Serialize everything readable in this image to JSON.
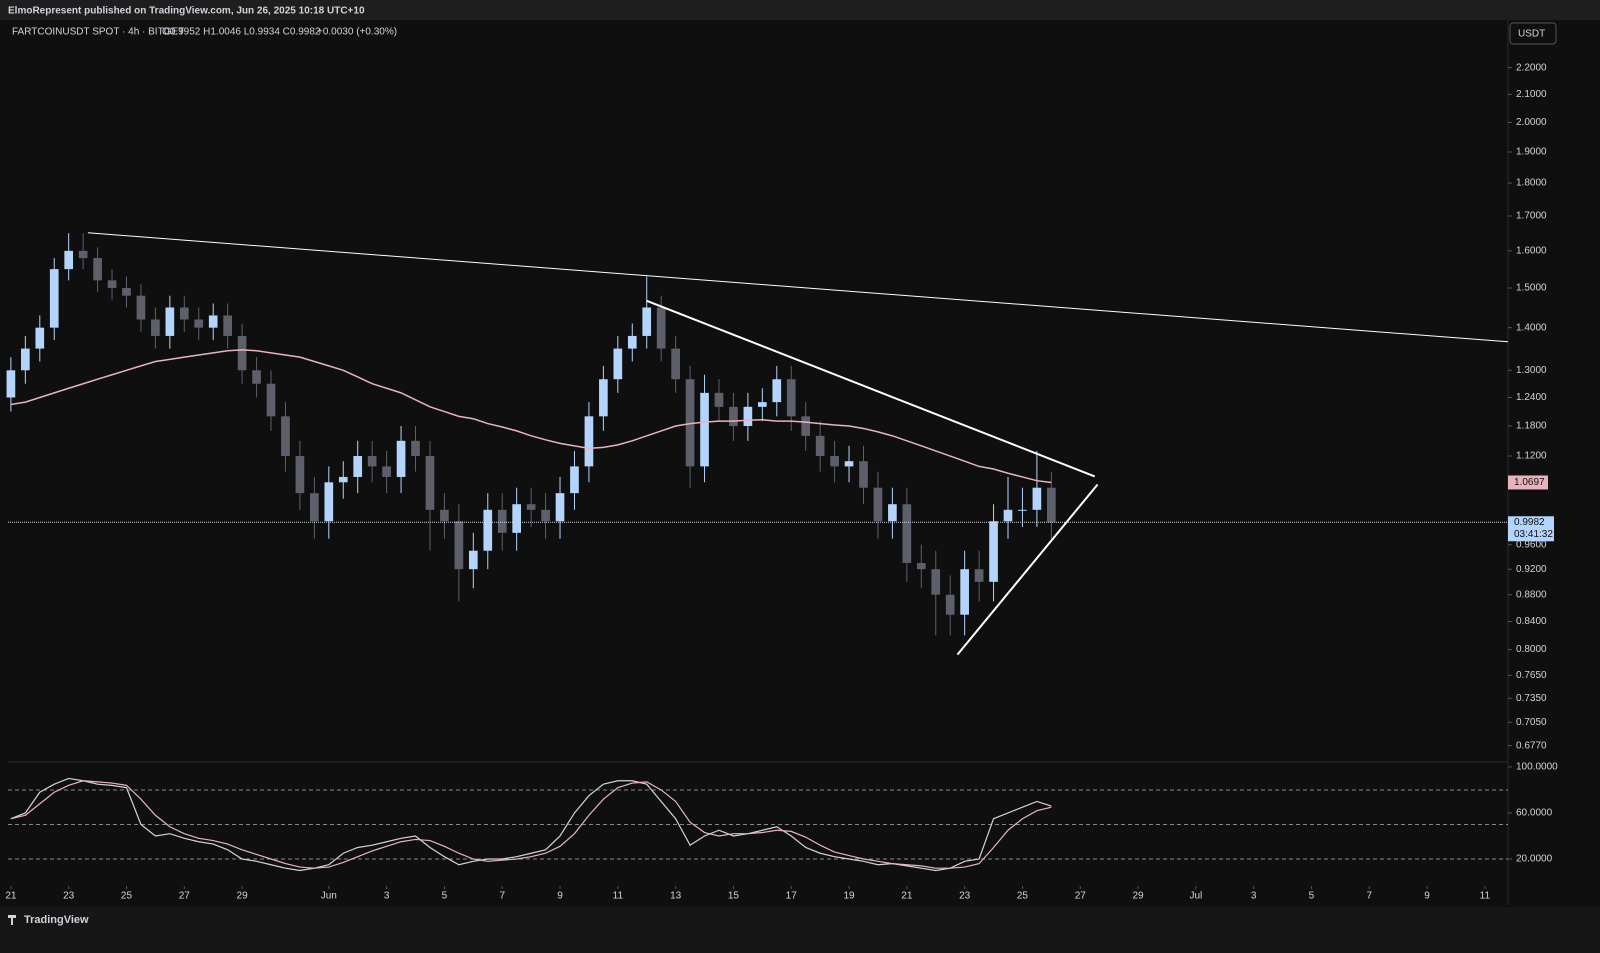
{
  "header": {
    "publisher": "ElmoRepresent published on TradingView.com, Jun 26, 2025 10:18 UTC+10",
    "symbol": "FARTCOINUSDT SPOT · 4h · BITGET",
    "ohlc": "O0.9952 H1.0046 L0.9934 C0.9982",
    "change": "+0.0030 (+0.30%)",
    "currency": "USDT",
    "logo": "TradingView"
  },
  "chart_data": [
    {
      "type": "candlestick",
      "open": [
        1.24,
        1.3,
        1.35,
        1.4,
        1.55,
        1.6,
        1.58,
        1.52,
        1.5,
        1.48,
        1.42,
        1.38,
        1.45,
        1.42,
        1.4,
        1.43,
        1.38,
        1.3,
        1.27,
        1.2,
        1.12,
        1.05,
        1.0,
        1.07,
        1.08,
        1.12,
        1.1,
        1.08,
        1.15,
        1.12,
        1.02,
        1.0,
        0.92,
        0.95,
        1.02,
        0.98,
        1.03,
        1.02,
        1.0,
        1.05,
        1.1,
        1.2,
        1.28,
        1.35,
        1.38,
        1.45,
        1.35,
        1.28,
        1.1,
        1.25,
        1.22,
        1.18,
        1.22,
        1.23,
        1.28,
        1.2,
        1.16,
        1.12,
        1.1,
        1.11,
        1.06,
        1.0,
        1.03,
        0.93,
        0.92,
        0.88,
        0.85,
        0.92,
        0.9,
        1.0,
        1.02,
        1.02,
        1.06
      ],
      "high": [
        1.33,
        1.38,
        1.43,
        1.58,
        1.65,
        1.65,
        1.61,
        1.55,
        1.53,
        1.51,
        1.45,
        1.48,
        1.48,
        1.45,
        1.46,
        1.46,
        1.41,
        1.33,
        1.3,
        1.23,
        1.15,
        1.08,
        1.1,
        1.11,
        1.15,
        1.15,
        1.13,
        1.18,
        1.18,
        1.15,
        1.05,
        1.03,
        0.98,
        1.05,
        1.05,
        1.06,
        1.06,
        1.05,
        1.08,
        1.13,
        1.23,
        1.31,
        1.38,
        1.41,
        1.53,
        1.48,
        1.38,
        1.31,
        1.29,
        1.28,
        1.25,
        1.25,
        1.26,
        1.31,
        1.31,
        1.23,
        1.19,
        1.15,
        1.14,
        1.14,
        1.09,
        1.06,
        1.06,
        0.96,
        0.95,
        0.91,
        0.95,
        0.95,
        1.03,
        1.08,
        1.06,
        1.13,
        1.09
      ],
      "low": [
        1.21,
        1.27,
        1.32,
        1.37,
        1.52,
        1.55,
        1.49,
        1.47,
        1.45,
        1.39,
        1.35,
        1.35,
        1.39,
        1.37,
        1.37,
        1.35,
        1.27,
        1.24,
        1.17,
        1.09,
        1.02,
        0.97,
        0.97,
        1.04,
        1.05,
        1.07,
        1.05,
        1.05,
        1.09,
        0.95,
        0.97,
        0.87,
        0.89,
        0.92,
        0.95,
        0.95,
        0.99,
        0.97,
        0.97,
        1.02,
        1.07,
        1.17,
        1.25,
        1.32,
        1.35,
        1.32,
        1.25,
        1.06,
        1.07,
        1.19,
        1.15,
        1.15,
        1.19,
        1.2,
        1.17,
        1.13,
        1.09,
        1.07,
        1.07,
        1.03,
        0.97,
        0.97,
        0.9,
        0.89,
        0.82,
        0.82,
        0.82,
        0.87,
        0.87,
        0.97,
        0.99,
        0.99,
        0.97
      ],
      "close": [
        1.3,
        1.35,
        1.4,
        1.55,
        1.6,
        1.58,
        1.52,
        1.5,
        1.48,
        1.42,
        1.38,
        1.45,
        1.42,
        1.4,
        1.43,
        1.38,
        1.3,
        1.27,
        1.2,
        1.12,
        1.05,
        1.0,
        1.07,
        1.08,
        1.12,
        1.1,
        1.08,
        1.15,
        1.12,
        1.02,
        1.0,
        0.92,
        0.95,
        1.02,
        0.98,
        1.03,
        1.02,
        1.0,
        1.05,
        1.1,
        1.2,
        1.28,
        1.35,
        1.38,
        1.45,
        1.35,
        1.28,
        1.1,
        1.25,
        1.22,
        1.18,
        1.22,
        1.23,
        1.28,
        1.2,
        1.16,
        1.12,
        1.1,
        1.11,
        1.06,
        1.0,
        1.03,
        0.93,
        0.92,
        0.88,
        0.85,
        0.92,
        0.9,
        1.0,
        1.02,
        1.02,
        1.06,
        0.998
      ],
      "up_color": "#b3d4fc",
      "down_color": "#5d606b",
      "ma": {
        "color": "#e8b4bc",
        "values": [
          1.225,
          1.23,
          1.24,
          1.25,
          1.26,
          1.27,
          1.28,
          1.29,
          1.3,
          1.31,
          1.32,
          1.325,
          1.33,
          1.335,
          1.34,
          1.345,
          1.347,
          1.345,
          1.34,
          1.335,
          1.33,
          1.32,
          1.31,
          1.3,
          1.285,
          1.27,
          1.26,
          1.25,
          1.235,
          1.22,
          1.21,
          1.2,
          1.195,
          1.185,
          1.178,
          1.17,
          1.16,
          1.152,
          1.145,
          1.14,
          1.135,
          1.137,
          1.142,
          1.15,
          1.16,
          1.17,
          1.18,
          1.185,
          1.188,
          1.19,
          1.19,
          1.192,
          1.193,
          1.19,
          1.19,
          1.188,
          1.185,
          1.182,
          1.18,
          1.175,
          1.168,
          1.16,
          1.15,
          1.14,
          1.13,
          1.12,
          1.11,
          1.1,
          1.095,
          1.087,
          1.08,
          1.073,
          1.0697
        ]
      },
      "trendlines": [
        {
          "x": [
            5.33,
            103.6
          ],
          "y": [
            1.651,
            1.366
          ]
        },
        {
          "x": [
            44,
            75.0
          ],
          "y": [
            1.467,
            1.081
          ]
        },
        {
          "x": [
            65.5,
            75.2
          ],
          "y": [
            0.793,
            1.066
          ]
        }
      ],
      "last_price": 0.9982,
      "countdown": "03:41:32",
      "price_color": "#b3d4fc",
      "log": true,
      "ylim": [
        0.658,
        2.39
      ],
      "yticks": [
        {
          "value": 2.2,
          "label": "2.2000"
        },
        {
          "value": 2.1,
          "label": "2.1000"
        },
        {
          "value": 2.0,
          "label": "2.0000"
        },
        {
          "value": 1.9,
          "label": "1.9000"
        },
        {
          "value": 1.8,
          "label": "1.8000"
        },
        {
          "value": 1.7,
          "label": "1.7000"
        },
        {
          "value": 1.6,
          "label": "1.6000"
        },
        {
          "value": 1.5,
          "label": "1.5000"
        },
        {
          "value": 1.4,
          "label": "1.4000"
        },
        {
          "value": 1.3,
          "label": "1.3000"
        },
        {
          "value": 1.24,
          "label": "1.2400"
        },
        {
          "value": 1.18,
          "label": "1.1800"
        },
        {
          "value": 1.12,
          "label": "1.1200"
        },
        {
          "value": 0.96,
          "label": "0.9600"
        },
        {
          "value": 0.92,
          "label": "0.9200"
        },
        {
          "value": 0.88,
          "label": "0.8800"
        },
        {
          "value": 0.84,
          "label": "0.8400"
        },
        {
          "value": 0.8,
          "label": "0.8000"
        },
        {
          "value": 0.765,
          "label": "0.7650"
        },
        {
          "value": 0.735,
          "label": "0.7350"
        },
        {
          "value": 0.705,
          "label": "0.7050"
        },
        {
          "value": 0.677,
          "label": "0.6770"
        }
      ],
      "xlim": [
        -0.2,
        103.6
      ],
      "xticks": [
        {
          "value": 0,
          "label": "21"
        },
        {
          "value": 4,
          "label": "23"
        },
        {
          "value": 8,
          "label": "25"
        },
        {
          "value": 12,
          "label": "27"
        },
        {
          "value": 16,
          "label": "29"
        },
        {
          "value": 22,
          "label": "Jun"
        },
        {
          "value": 26,
          "label": "3"
        },
        {
          "value": 30,
          "label": "5"
        },
        {
          "value": 34,
          "label": "7"
        },
        {
          "value": 38,
          "label": "9"
        },
        {
          "value": 42,
          "label": "11"
        },
        {
          "value": 46,
          "label": "13"
        },
        {
          "value": 50,
          "label": "15"
        },
        {
          "value": 54,
          "label": "17"
        },
        {
          "value": 58,
          "label": "19"
        },
        {
          "value": 62,
          "label": "21"
        },
        {
          "value": 66,
          "label": "23"
        },
        {
          "value": 70,
          "label": "25"
        },
        {
          "value": 74,
          "label": "27"
        },
        {
          "value": 78,
          "label": "29"
        },
        {
          "value": 82,
          "label": "Jul"
        },
        {
          "value": 86,
          "label": "3"
        },
        {
          "value": 90,
          "label": "5"
        },
        {
          "value": 94,
          "label": "7"
        },
        {
          "value": 98,
          "label": "9"
        },
        {
          "value": 102,
          "label": "11"
        }
      ]
    },
    {
      "type": "line",
      "series": [
        {
          "color": "#d1d4dc",
          "values": [
            55,
            60,
            78,
            85,
            90,
            88,
            85,
            84,
            82,
            50,
            40,
            42,
            38,
            35,
            33,
            28,
            20,
            18,
            15,
            12,
            10,
            12,
            15,
            25,
            30,
            32,
            35,
            38,
            40,
            30,
            22,
            15,
            18,
            20,
            20,
            22,
            25,
            28,
            40,
            60,
            75,
            85,
            88,
            88,
            85,
            70,
            55,
            32,
            40,
            45,
            40,
            42,
            45,
            48,
            40,
            30,
            25,
            22,
            20,
            18,
            15,
            16,
            14,
            12,
            10,
            12,
            18,
            20,
            55,
            60,
            65,
            70,
            66
          ]
        },
        {
          "color": "#e8b4bc",
          "values": [
            55,
            58,
            68,
            78,
            84,
            88,
            87,
            86,
            84,
            72,
            58,
            48,
            42,
            38,
            36,
            33,
            28,
            24,
            20,
            16,
            13,
            12,
            13,
            17,
            22,
            27,
            31,
            35,
            37,
            36,
            31,
            25,
            20,
            18,
            19,
            20,
            22,
            25,
            31,
            42,
            58,
            72,
            82,
            86,
            87,
            80,
            70,
            52,
            43,
            40,
            42,
            42,
            43,
            45,
            44,
            39,
            32,
            26,
            23,
            20,
            18,
            16,
            15,
            14,
            12,
            12,
            13,
            16,
            30,
            45,
            55,
            62,
            65
          ]
        }
      ],
      "levels": [
        80,
        50,
        20
      ],
      "ylim": [
        -2.6,
        104.3
      ],
      "yticks": [
        {
          "value": 100,
          "label": "100.0000"
        },
        {
          "value": 60,
          "label": "60.0000"
        },
        {
          "value": 20,
          "label": "20.0000"
        }
      ]
    }
  ]
}
